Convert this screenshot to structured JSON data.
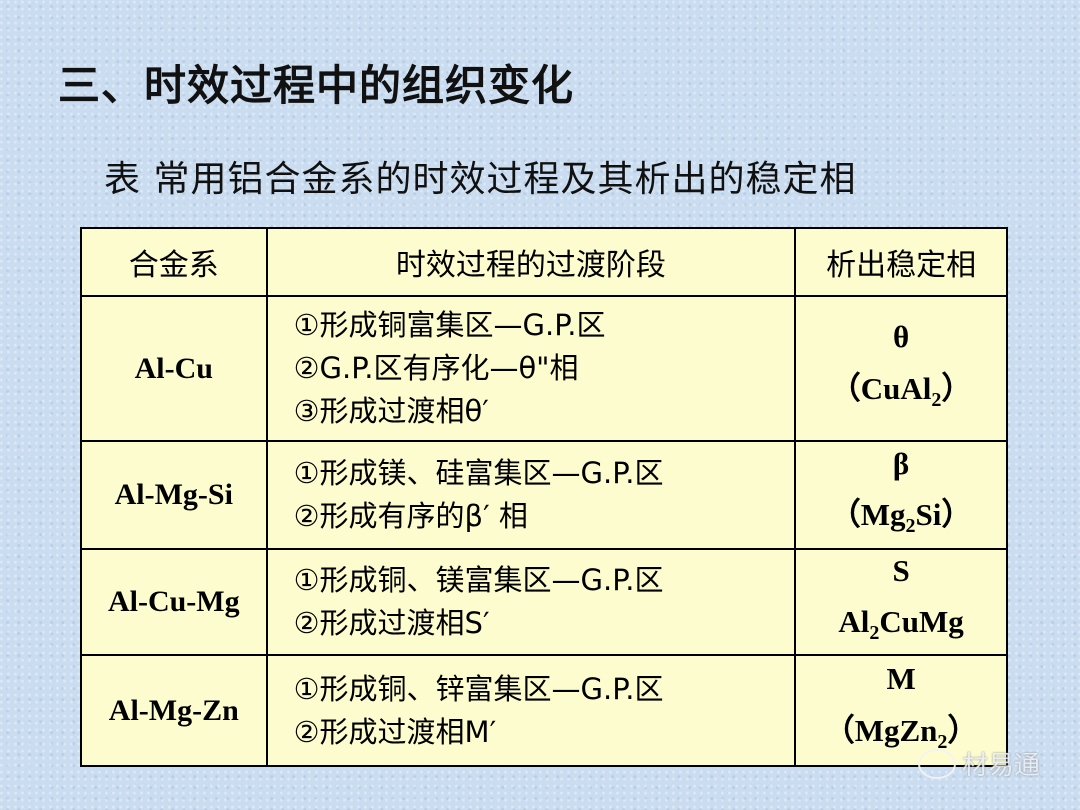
{
  "title": "三、时效过程中的组织变化",
  "caption": "表  常用铝合金系的时效过程及其析出的稳定相",
  "table": {
    "headers": [
      "合金系",
      "时效过程的过渡阶段",
      "析出稳定相"
    ],
    "rows": [
      {
        "alloy": "Al-Cu",
        "stages": [
          "①形成铜富集区—G.P.区",
          "②G.P.区有序化—θ\"相",
          "③形成过渡相θ′"
        ],
        "phase": [
          {
            "pre": "θ",
            "sub": "",
            "post": ""
          },
          {
            "pre": "（CuAl",
            "sub": "2",
            "post": "）"
          }
        ]
      },
      {
        "alloy": "Al-Mg-Si",
        "stages": [
          "①形成镁、硅富集区—G.P.区",
          "②形成有序的β′ 相"
        ],
        "phase": [
          {
            "pre": "β",
            "sub": "",
            "post": ""
          },
          {
            "pre": "（Mg",
            "sub": "2",
            "post": "Si）"
          }
        ]
      },
      {
        "alloy": "Al-Cu-Mg",
        "stages": [
          "①形成铜、镁富集区—G.P.区",
          "②形成过渡相S′"
        ],
        "phase": [
          {
            "pre": "S",
            "sub": "",
            "post": ""
          },
          {
            "pre": "Al",
            "sub": "2",
            "post": "CuMg"
          }
        ]
      },
      {
        "alloy": "Al-Mg-Zn",
        "stages": [
          "①形成铜、锌富集区—G.P.区",
          "②形成过渡相M′"
        ],
        "phase": [
          {
            "pre": "M",
            "sub": "",
            "post": ""
          },
          {
            "pre": "（MgZn",
            "sub": "2",
            "post": "）"
          }
        ]
      }
    ]
  },
  "watermark": "材易通",
  "colors": {
    "background": "#cadcef",
    "table_fill": "#fdfcce"
  }
}
